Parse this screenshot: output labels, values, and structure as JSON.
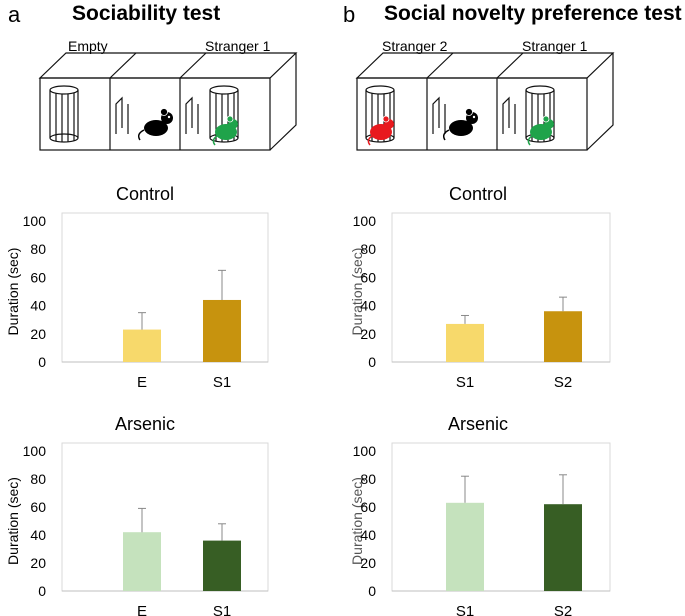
{
  "panels": [
    {
      "letter": "a",
      "title": "Sociability test",
      "chambers": {
        "left": "Empty",
        "right": "Stranger 1"
      }
    },
    {
      "letter": "b",
      "title": "Social novelty preference test",
      "chambers": {
        "left": "Stranger 2",
        "right": "Stranger 1"
      }
    }
  ],
  "colors": {
    "control_light": "#F7D96B",
    "control_dark": "#C7930E",
    "arsenic_light": "#C5E2BD",
    "arsenic_dark": "#375E24",
    "stranger1_mouse": "#1FA34A",
    "stranger2_mouse": "#E8191E",
    "subject_mouse": "#000000"
  },
  "chart_data": [
    {
      "type": "bar",
      "title": "Control",
      "ylabel": "Duration (sec)",
      "categories": [
        "E",
        "S1"
      ],
      "values": [
        23,
        44
      ],
      "errors": [
        12,
        21
      ],
      "ylim": [
        0,
        100
      ],
      "yticks": [
        0,
        20,
        40,
        60,
        80,
        100
      ],
      "colors": [
        "#F7D96B",
        "#C7930E"
      ]
    },
    {
      "type": "bar",
      "title": "Control",
      "ylabel": "Duration (sec)",
      "categories": [
        "S1",
        "S2"
      ],
      "values": [
        27,
        36
      ],
      "errors": [
        6,
        10
      ],
      "ylim": [
        0,
        100
      ],
      "yticks": [
        0,
        20,
        40,
        60,
        80,
        100
      ],
      "colors": [
        "#F7D96B",
        "#C7930E"
      ]
    },
    {
      "type": "bar",
      "title": "Arsenic",
      "ylabel": "Duration (sec)",
      "categories": [
        "E",
        "S1"
      ],
      "values": [
        42,
        36
      ],
      "errors": [
        17,
        12
      ],
      "ylim": [
        0,
        100
      ],
      "yticks": [
        0,
        20,
        40,
        60,
        80,
        100
      ],
      "colors": [
        "#C5E2BD",
        "#375E24"
      ]
    },
    {
      "type": "bar",
      "title": "Arsenic",
      "ylabel": "Duration (sec)",
      "categories": [
        "S1",
        "S2"
      ],
      "values": [
        63,
        62
      ],
      "errors": [
        19,
        21
      ],
      "ylim": [
        0,
        100
      ],
      "yticks": [
        0,
        20,
        40,
        60,
        80,
        100
      ],
      "colors": [
        "#C5E2BD",
        "#375E24"
      ]
    }
  ]
}
